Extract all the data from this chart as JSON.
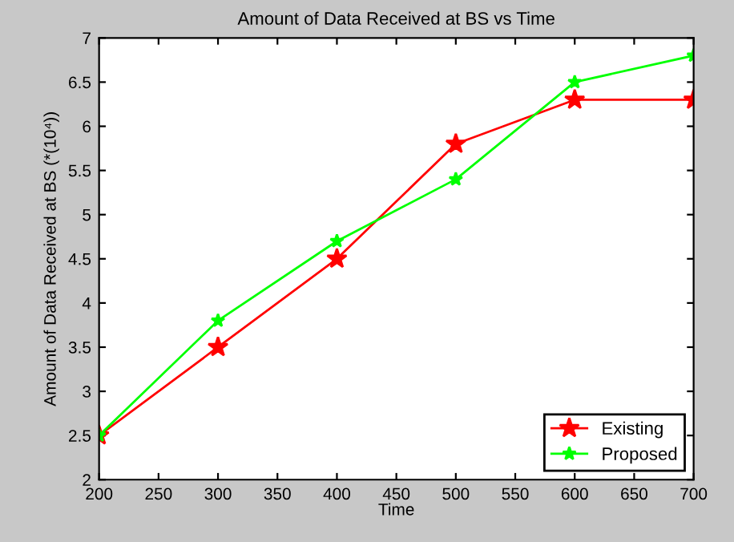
{
  "chart_data": {
    "type": "line",
    "title": "Amount of Data Received at BS vs Time",
    "xlabel": "Time",
    "ylabel": "Amount of Data Received at BS (*(10⁴))",
    "x": [
      200,
      300,
      400,
      500,
      600,
      700
    ],
    "series": [
      {
        "name": "Existing",
        "color": "#ff0000",
        "values": [
          2.5,
          3.5,
          4.5,
          5.8,
          6.3,
          6.3
        ]
      },
      {
        "name": "Proposed",
        "color": "#00ff00",
        "values": [
          2.5,
          3.8,
          4.7,
          5.4,
          6.5,
          6.8
        ]
      }
    ],
    "xlim": [
      200,
      700
    ],
    "xticks": [
      200,
      250,
      300,
      350,
      400,
      450,
      500,
      550,
      600,
      650,
      700
    ],
    "ylim": [
      2,
      7
    ],
    "yticks": [
      2,
      2.5,
      3,
      3.5,
      4,
      4.5,
      5,
      5.5,
      6,
      6.5,
      7
    ],
    "grid": false,
    "legend": "bottom right",
    "marker": "star",
    "line_style": "solid"
  }
}
